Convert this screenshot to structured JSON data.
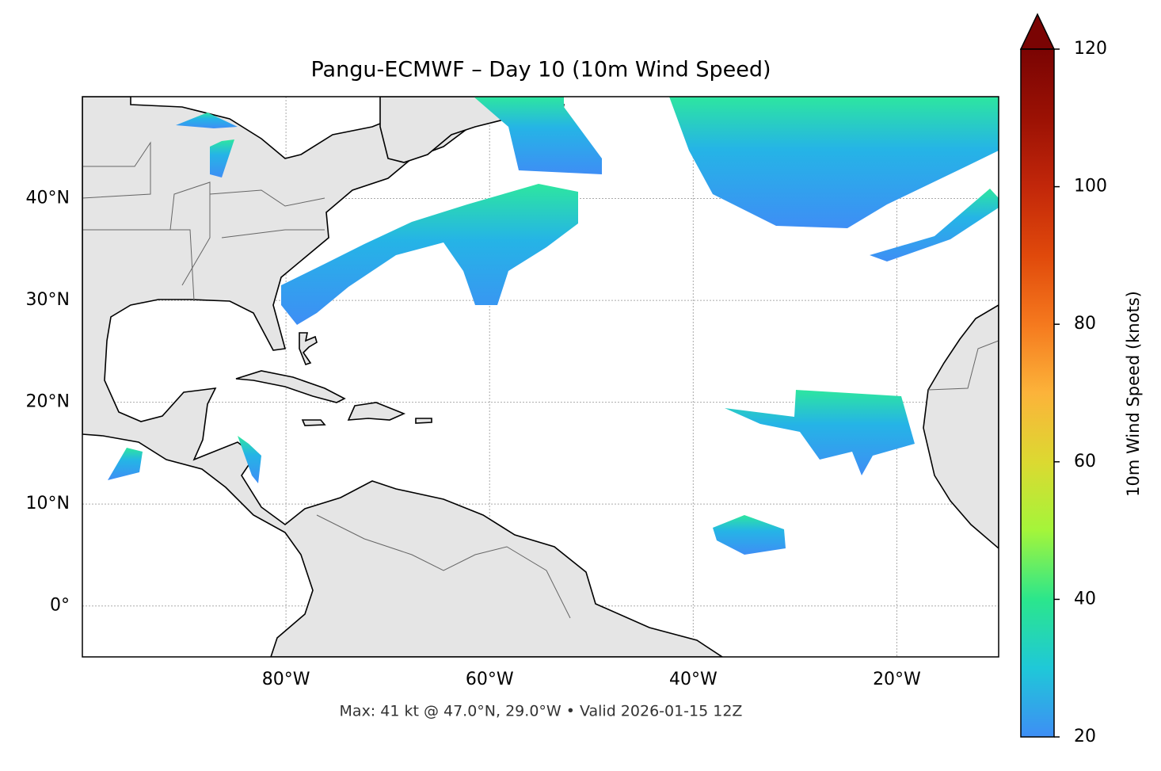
{
  "title": "Pangu-ECMWF – Day 10 (10m Wind Speed)",
  "footer": "Max: 41 kt @ 47.0°N, 29.0°W • Valid 2026-01-15 12Z",
  "map": {
    "xlim": [
      -100,
      -10
    ],
    "ylim": [
      -5,
      50
    ],
    "xticks": [
      {
        "value": -80,
        "label": "80°W"
      },
      {
        "value": -60,
        "label": "60°W"
      },
      {
        "value": -40,
        "label": "40°W"
      },
      {
        "value": -20,
        "label": "20°W"
      }
    ],
    "yticks": [
      {
        "value": 0,
        "label": "0°"
      },
      {
        "value": 10,
        "label": "10°N"
      },
      {
        "value": 20,
        "label": "20°N"
      },
      {
        "value": 30,
        "label": "30°N"
      },
      {
        "value": 40,
        "label": "40°N"
      }
    ],
    "grid": true
  },
  "colorbar": {
    "label": "10m Wind Speed (knots)",
    "lim": [
      20,
      120
    ],
    "ticks": [
      20,
      40,
      60,
      80,
      100,
      120
    ]
  }
}
